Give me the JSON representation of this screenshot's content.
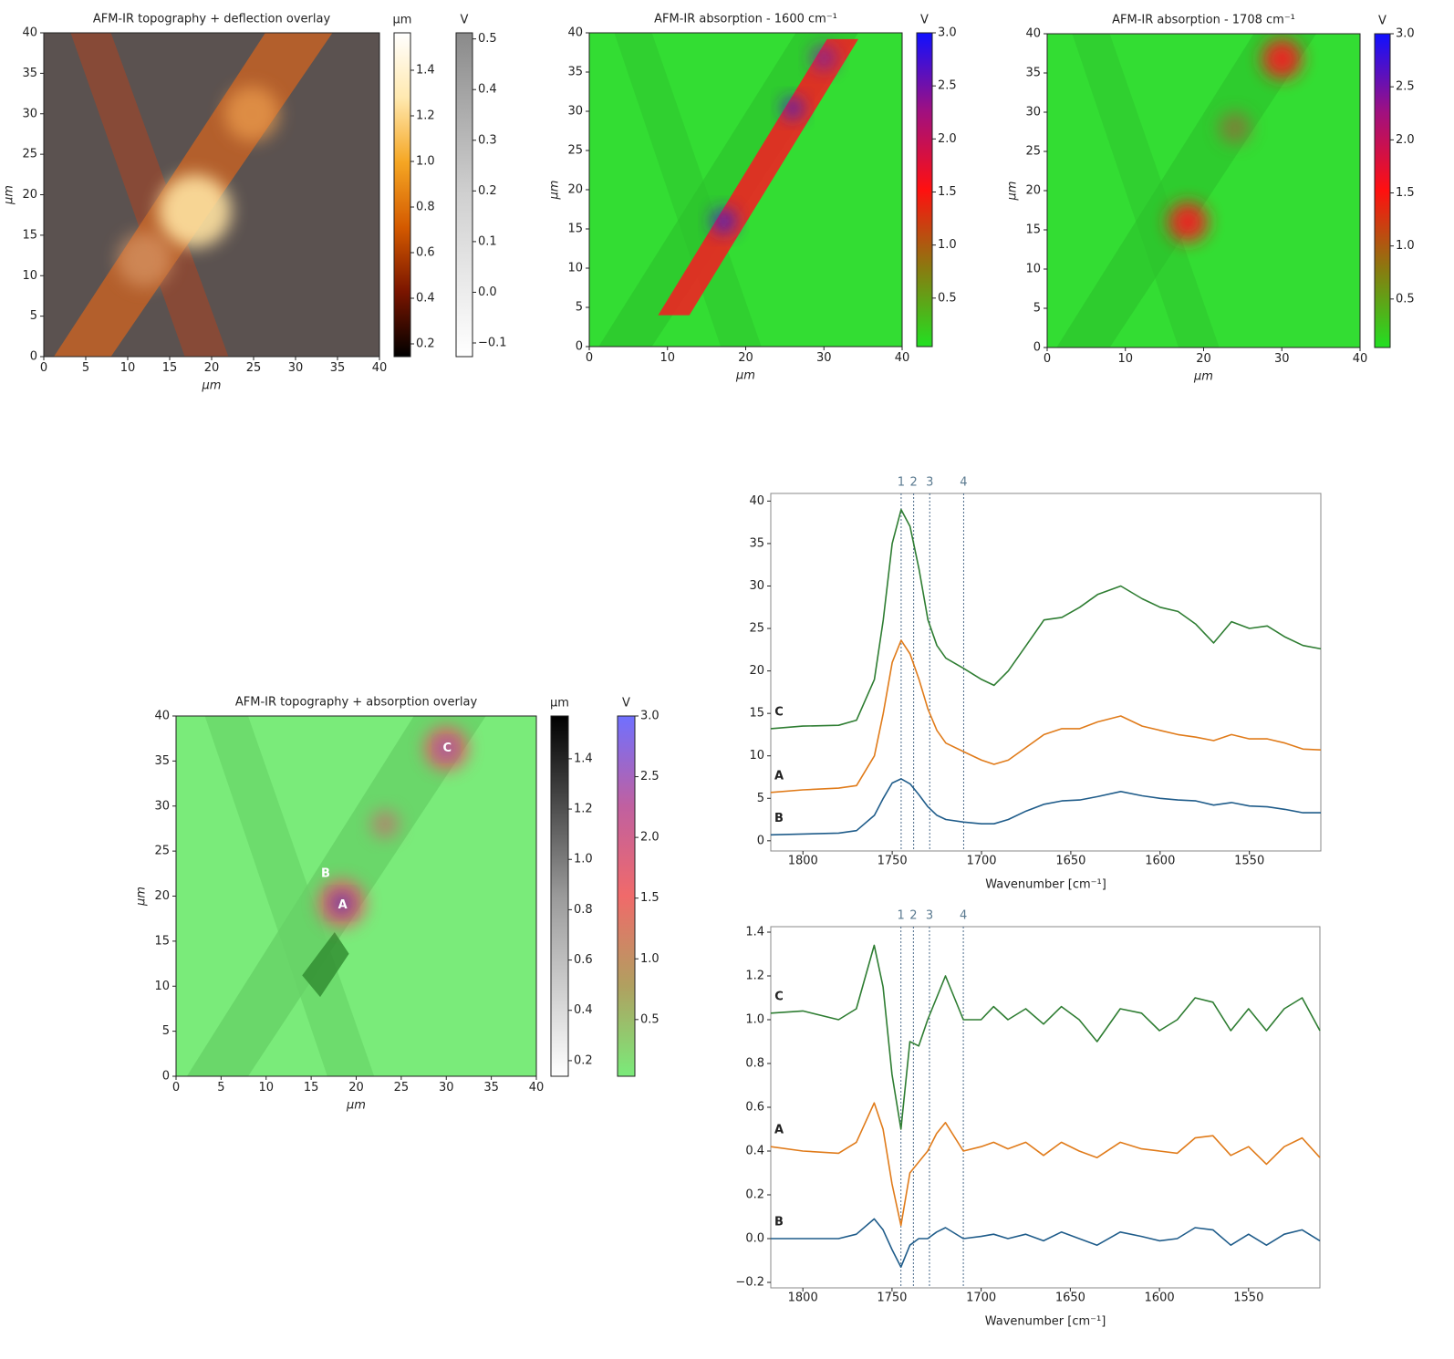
{
  "chart_data": [
    {
      "type": "heatmap",
      "title": "AFM-IR topography + deflection overlay",
      "xlabel": "µm",
      "ylabel": "µm",
      "xlim": [
        0,
        40
      ],
      "ylim": [
        0,
        40
      ],
      "xticks": [
        0,
        5,
        10,
        15,
        20,
        25,
        30,
        35,
        40
      ],
      "yticks": [
        0,
        5,
        10,
        15,
        20,
        25,
        30,
        35,
        40
      ],
      "colorbars": [
        {
          "label": "µm",
          "lim": [
            0.144,
            1.564
          ],
          "ticks": [
            0.2,
            0.4,
            0.6,
            0.8,
            {
              "value": 1,
              "label": "1.0"
            },
            1.2,
            1.4
          ],
          "colors": [
            "#000000",
            "#7a1500",
            "#d45a00",
            "#f5a623",
            "#ffe9b0",
            "#ffffff"
          ]
        },
        {
          "label": "V",
          "lim": [
            -0.127,
            0.512
          ],
          "ticks": [
            {
              "value": -0.1,
              "label": "−0.1"
            },
            {
              "value": 0,
              "label": "0.0"
            },
            0.1,
            0.2,
            0.3,
            0.4,
            0.5
          ],
          "colors": [
            "#ffffff",
            "#d0d0d0",
            "#8a8a8a"
          ]
        }
      ]
    },
    {
      "type": "heatmap",
      "title": "AFM-IR absorption - 1600 cm⁻¹",
      "xlabel": "µm",
      "ylabel": "µm",
      "xlim": [
        0,
        40
      ],
      "ylim": [
        0,
        40
      ],
      "xticks": [
        0,
        10,
        20,
        30,
        40
      ],
      "yticks": [
        0,
        5,
        10,
        15,
        20,
        25,
        30,
        35,
        40
      ],
      "colorbars": [
        {
          "label": "V",
          "lim": [
            0.043,
            3.0
          ],
          "ticks": [
            0.5,
            {
              "value": 1,
              "label": "1.0"
            },
            1.5,
            {
              "value": 2,
              "label": "2.0"
            },
            2.5,
            {
              "value": 3,
              "label": "3.0"
            }
          ],
          "colors": [
            "#22e022",
            "#8a7a10",
            "#ff1010",
            "#a01080",
            "#1010ff"
          ]
        }
      ]
    },
    {
      "type": "heatmap",
      "title": "AFM-IR absorption - 1708 cm⁻¹",
      "xlabel": "µm",
      "ylabel": "µm",
      "xlim": [
        0,
        40
      ],
      "ylim": [
        0,
        40
      ],
      "xticks": [
        0,
        10,
        20,
        30,
        40
      ],
      "yticks": [
        0,
        5,
        10,
        15,
        20,
        25,
        30,
        35,
        40
      ],
      "colorbars": [
        {
          "label": "V",
          "lim": [
            0.043,
            3.0
          ],
          "ticks": [
            0.5,
            {
              "value": 1,
              "label": "1.0"
            },
            1.5,
            {
              "value": 2,
              "label": "2.0"
            },
            2.5,
            {
              "value": 3,
              "label": "3.0"
            }
          ],
          "colors": [
            "#22e022",
            "#8a7a10",
            "#ff1010",
            "#a01080",
            "#1010ff"
          ]
        }
      ]
    },
    {
      "type": "heatmap",
      "title": "AFM-IR topography + absorption overlay",
      "xlabel": "µm",
      "ylabel": "µm",
      "xlim": [
        0,
        40
      ],
      "ylim": [
        0,
        40
      ],
      "xticks": [
        0,
        5,
        10,
        15,
        20,
        25,
        30,
        35,
        40
      ],
      "yticks": [
        0,
        5,
        10,
        15,
        20,
        25,
        30,
        35,
        40
      ],
      "colorbars": [
        {
          "label": "µm",
          "lim": [
            0.138,
            1.57
          ],
          "ticks": [
            0.2,
            0.4,
            0.6,
            0.8,
            {
              "value": 1,
              "label": "1.0"
            },
            1.2,
            1.4
          ],
          "colors": [
            "#ffffff",
            "#9a9a9a",
            "#000000"
          ]
        },
        {
          "label": "V",
          "lim": [
            0.033,
            3.0
          ],
          "ticks": [
            0.5,
            {
              "value": 1,
              "label": "1.0"
            },
            1.5,
            {
              "value": 2,
              "label": "2.0"
            },
            2.5,
            {
              "value": 3,
              "label": "3.0"
            }
          ],
          "colors": [
            "#7aeb7a",
            "#b0a060",
            "#f06a6a",
            "#c060a0",
            "#7070ff"
          ]
        }
      ],
      "annotations": [
        {
          "text": "A",
          "x": 18.5,
          "y": 19.0
        },
        {
          "text": "B",
          "x": 16.6,
          "y": 22.5
        },
        {
          "text": "C",
          "x": 30.1,
          "y": 36.4
        }
      ]
    },
    {
      "type": "line",
      "xlabel": "Wavenumber [cm⁻¹]",
      "xlim": [
        1818,
        1510
      ],
      "ylim": [
        -1.2,
        40.9
      ],
      "xticks": [
        1800,
        1750,
        1700,
        1650,
        1600,
        1550
      ],
      "yticks": [
        0,
        5,
        10,
        15,
        20,
        25,
        30,
        35,
        40
      ],
      "x": [
        1818,
        1800,
        1780,
        1770,
        1760,
        1755,
        1750,
        1745,
        1740,
        1735,
        1730,
        1725,
        1720,
        1710,
        1700,
        1693,
        1685,
        1675,
        1665,
        1655,
        1645,
        1635,
        1622,
        1610,
        1600,
        1590,
        1580,
        1570,
        1560,
        1550,
        1540,
        1530,
        1520,
        1510
      ],
      "series": [
        {
          "name": "C",
          "color": "#2e7d32",
          "values": [
            13.2,
            13.5,
            13.6,
            14.2,
            19,
            26,
            35,
            39,
            37,
            32,
            26,
            23,
            21.5,
            20.3,
            19,
            18.3,
            20,
            23,
            26,
            26.3,
            27.5,
            29,
            30,
            28.5,
            27.5,
            27,
            25.5,
            23.3,
            25.8,
            25,
            25.3,
            24,
            23,
            22.6
          ]
        },
        {
          "name": "A",
          "color": "#e07b1a",
          "values": [
            5.7,
            6,
            6.2,
            6.5,
            10,
            15,
            21,
            23.6,
            22,
            19,
            15.5,
            13,
            11.5,
            10.5,
            9.5,
            9,
            9.5,
            11,
            12.5,
            13.2,
            13.2,
            14,
            14.7,
            13.5,
            13,
            12.5,
            12.2,
            11.8,
            12.5,
            12,
            12,
            11.5,
            10.8,
            10.7
          ]
        },
        {
          "name": "B",
          "color": "#1f5c8a",
          "values": [
            0.7,
            0.8,
            0.9,
            1.2,
            3,
            5,
            6.8,
            7.3,
            6.7,
            5.4,
            4,
            3,
            2.5,
            2.2,
            2,
            2,
            2.5,
            3.5,
            4.3,
            4.7,
            4.8,
            5.2,
            5.8,
            5.3,
            5,
            4.8,
            4.7,
            4.2,
            4.5,
            4.1,
            4,
            3.7,
            3.3,
            3.3
          ]
        }
      ],
      "vlines": [
        {
          "label": "1",
          "x": 1745
        },
        {
          "label": "2",
          "x": 1738
        },
        {
          "label": "3",
          "x": 1729
        },
        {
          "label": "4",
          "x": 1710
        }
      ]
    },
    {
      "type": "line",
      "xlabel": "Wavenumber [cm⁻¹]",
      "xlim": [
        1818,
        1510
      ],
      "ylim": [
        -0.225,
        1.425
      ],
      "xticks": [
        1800,
        1750,
        1700,
        1650,
        1600,
        1550
      ],
      "yticks": [
        {
          "value": -0.2,
          "label": "−0.2"
        },
        {
          "value": 0,
          "label": "0.0"
        },
        0.2,
        0.4,
        0.6,
        0.8,
        {
          "value": 1,
          "label": "1.0"
        },
        1.2,
        1.4
      ],
      "x": [
        1818,
        1800,
        1780,
        1770,
        1760,
        1755,
        1750,
        1745,
        1740,
        1735,
        1730,
        1725,
        1720,
        1710,
        1700,
        1693,
        1685,
        1675,
        1665,
        1655,
        1645,
        1635,
        1622,
        1610,
        1600,
        1590,
        1580,
        1570,
        1560,
        1550,
        1540,
        1530,
        1520,
        1510
      ],
      "series": [
        {
          "name": "C",
          "color": "#2e7d32",
          "values": [
            1.03,
            1.04,
            1.0,
            1.05,
            1.34,
            1.15,
            0.75,
            0.5,
            0.9,
            0.88,
            1.0,
            1.1,
            1.2,
            1.0,
            1.0,
            1.06,
            1.0,
            1.05,
            0.98,
            1.06,
            1.0,
            0.9,
            1.05,
            1.03,
            0.95,
            1.0,
            1.1,
            1.08,
            0.95,
            1.05,
            0.95,
            1.05,
            1.1,
            0.95
          ]
        },
        {
          "name": "A",
          "color": "#e07b1a",
          "values": [
            0.42,
            0.4,
            0.39,
            0.44,
            0.62,
            0.5,
            0.25,
            0.06,
            0.3,
            0.35,
            0.4,
            0.48,
            0.53,
            0.4,
            0.42,
            0.44,
            0.41,
            0.44,
            0.38,
            0.44,
            0.4,
            0.37,
            0.44,
            0.41,
            0.4,
            0.39,
            0.46,
            0.47,
            0.38,
            0.42,
            0.34,
            0.42,
            0.46,
            0.37
          ]
        },
        {
          "name": "B",
          "color": "#1f5c8a",
          "values": [
            0.0,
            0.0,
            0.0,
            0.02,
            0.09,
            0.04,
            -0.05,
            -0.13,
            -0.03,
            0.0,
            0.0,
            0.03,
            0.05,
            0.0,
            0.01,
            0.02,
            0.0,
            0.02,
            -0.01,
            0.03,
            0.0,
            -0.03,
            0.03,
            0.01,
            -0.01,
            0.0,
            0.05,
            0.04,
            -0.03,
            0.02,
            -0.03,
            0.02,
            0.04,
            -0.01
          ]
        }
      ],
      "vlines": [
        {
          "label": "1",
          "x": 1745
        },
        {
          "label": "2",
          "x": 1738
        },
        {
          "label": "3",
          "x": 1729
        },
        {
          "label": "4",
          "x": 1710
        }
      ]
    }
  ]
}
